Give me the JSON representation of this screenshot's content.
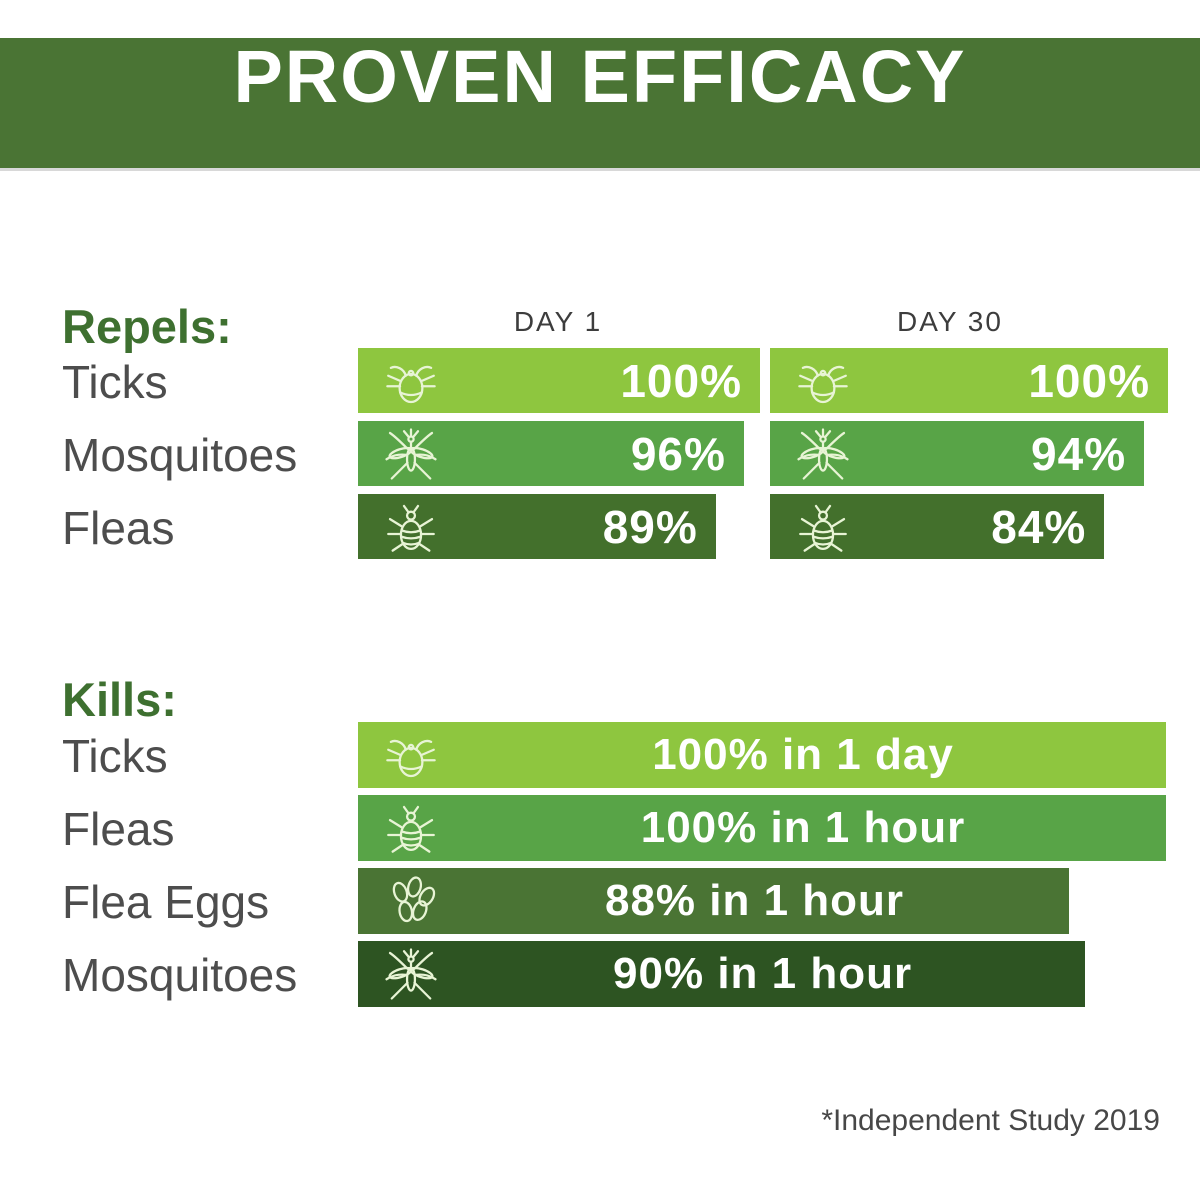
{
  "title": "PROVEN EFFICACY",
  "footnote": "*Independent Study 2019",
  "colors": {
    "header_bg": "#4a7434",
    "bar_light_green": "#8ec63f",
    "bar_medium_green": "#58a447",
    "bar_dark_green": "#43702c",
    "bar_olive_green": "#4a7434",
    "bar_darkest_green": "#2d5422",
    "section_label_green": "#3e7030",
    "row_label_gray": "#4d4d4d",
    "column_header_gray": "#3d3d3d",
    "icon_stroke": "#e8f4d5",
    "bar_text_white": "#ffffff"
  },
  "repels": {
    "label": "Repels:",
    "columns": [
      "DAY 1",
      "DAY 30"
    ],
    "rows": [
      {
        "label": "Ticks",
        "icon": "tick-icon",
        "color": "#8ec63f",
        "day1": {
          "value": 100,
          "text": "100%"
        },
        "day30": {
          "value": 100,
          "text": "100%"
        }
      },
      {
        "label": "Mosquitoes",
        "icon": "mosquito-icon",
        "color": "#58a447",
        "day1": {
          "value": 96,
          "text": "96%"
        },
        "day30": {
          "value": 94,
          "text": "94%"
        }
      },
      {
        "label": "Fleas",
        "icon": "flea-icon",
        "color": "#43702c",
        "day1": {
          "value": 89,
          "text": "89%"
        },
        "day30": {
          "value": 84,
          "text": "84%"
        }
      }
    ]
  },
  "kills": {
    "label": "Kills:",
    "rows": [
      {
        "label": "Ticks",
        "icon": "tick-icon",
        "color": "#8ec63f",
        "value": 100,
        "text": "100% in 1 day"
      },
      {
        "label": "Fleas",
        "icon": "flea-icon",
        "color": "#58a447",
        "value": 100,
        "text": "100% in 1 hour"
      },
      {
        "label": "Flea Eggs",
        "icon": "eggs-icon",
        "color": "#4a7434",
        "value": 88,
        "text": "88% in 1 hour"
      },
      {
        "label": "Mosquitoes",
        "icon": "mosquito-icon",
        "color": "#2d5422",
        "value": 90,
        "text": "90% in 1 hour"
      }
    ]
  },
  "chart_data": [
    {
      "type": "bar",
      "title": "Repels",
      "categories": [
        "Ticks",
        "Mosquitoes",
        "Fleas"
      ],
      "series": [
        {
          "name": "Day 1",
          "values": [
            100,
            96,
            89
          ]
        },
        {
          "name": "Day 30",
          "values": [
            100,
            94,
            84
          ]
        }
      ],
      "unit": "%",
      "xlim": [
        0,
        100
      ],
      "orientation": "horizontal",
      "data_labels": [
        [
          "100%",
          "96%",
          "89%"
        ],
        [
          "100%",
          "94%",
          "84%"
        ]
      ]
    },
    {
      "type": "bar",
      "title": "Kills",
      "categories": [
        "Ticks",
        "Fleas",
        "Flea Eggs",
        "Mosquitoes"
      ],
      "values": [
        100,
        100,
        88,
        90
      ],
      "unit": "%",
      "xlim": [
        0,
        100
      ],
      "orientation": "horizontal",
      "data_labels": [
        "100% in 1 day",
        "100% in 1 hour",
        "88% in 1 hour",
        "90% in 1 hour"
      ]
    }
  ]
}
